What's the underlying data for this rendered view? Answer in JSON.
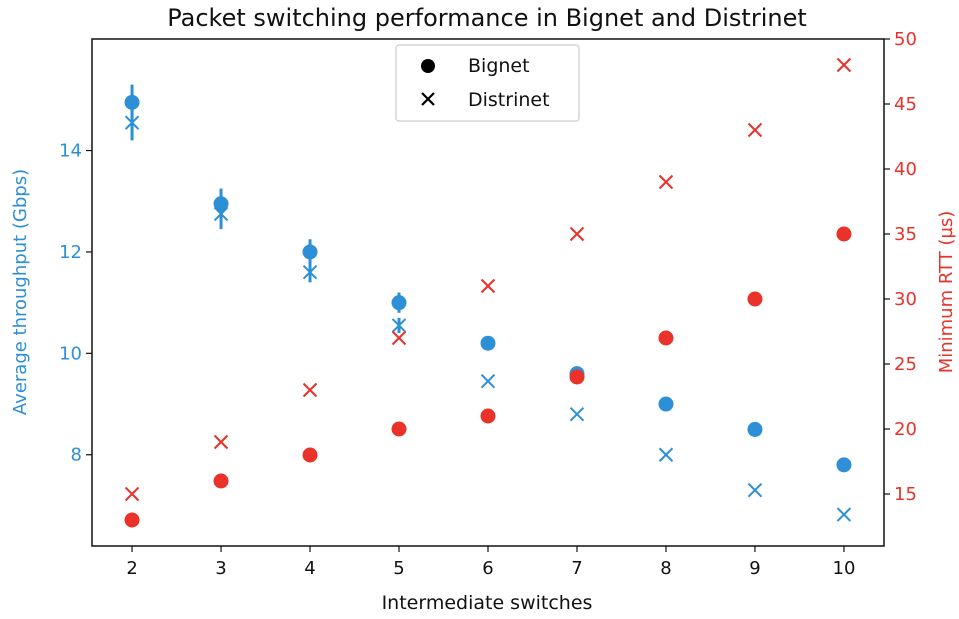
{
  "chart_data": {
    "type": "scatter",
    "title": "Packet switching performance in Bignet and Distrinet",
    "xlabel": "Intermediate switches",
    "ylabel": "Average throughput (Gbps)",
    "y2label": "Minimum RTT (µs)",
    "x": [
      2,
      3,
      4,
      5,
      6,
      7,
      8,
      9,
      10
    ],
    "xlim": [
      1.55,
      10.45
    ],
    "ylim": [
      6.2,
      16.2
    ],
    "y2lim": [
      11,
      50
    ],
    "xticks": [
      "2",
      "3",
      "4",
      "5",
      "6",
      "7",
      "8",
      "9",
      "10"
    ],
    "yticks": [
      "8",
      "10",
      "12",
      "14"
    ],
    "y2ticks": [
      "15",
      "20",
      "25",
      "30",
      "35",
      "40",
      "45",
      "50"
    ],
    "legend": {
      "position": "top-center",
      "entries": [
        "Bignet",
        "Distrinet"
      ]
    },
    "colors": {
      "throughput": "#2d8fd5",
      "rtt": "#e8322a"
    },
    "series": [
      {
        "name": "Bignet",
        "metric": "throughput",
        "marker": "circle",
        "axis": "left",
        "values": [
          14.95,
          12.95,
          12.0,
          11.0,
          10.2,
          9.6,
          9.0,
          8.5,
          7.8
        ],
        "error": [
          0.35,
          0.3,
          0.25,
          0.2,
          0,
          0,
          0,
          0,
          0
        ]
      },
      {
        "name": "Distrinet",
        "metric": "throughput",
        "marker": "x",
        "axis": "left",
        "values": [
          14.55,
          12.75,
          11.6,
          10.55,
          9.45,
          8.8,
          8.0,
          7.3,
          6.82
        ],
        "error": [
          0.35,
          0.3,
          0.2,
          0.15,
          0,
          0,
          0,
          0,
          0
        ]
      },
      {
        "name": "Bignet",
        "metric": "rtt",
        "marker": "circle",
        "axis": "right",
        "values": [
          13,
          16,
          18,
          20,
          21,
          24,
          27,
          30,
          35
        ]
      },
      {
        "name": "Distrinet",
        "metric": "rtt",
        "marker": "x",
        "axis": "right",
        "values": [
          15,
          19,
          23,
          27,
          31,
          35,
          39,
          43,
          48
        ]
      }
    ]
  }
}
